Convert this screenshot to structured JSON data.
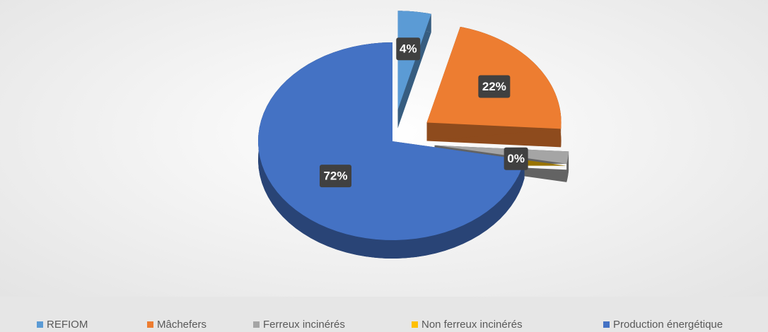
{
  "chart_data": {
    "type": "pie",
    "categories": [
      "REFIOM",
      "Mâchefers",
      "Ferreux incinérés",
      "Non ferreux incinérés",
      "Production énergétique"
    ],
    "values": [
      4,
      22,
      2,
      0,
      72
    ],
    "value_labels": [
      "4%",
      "22%",
      null,
      "0%",
      "72%"
    ],
    "colors": [
      "#5b9bd5",
      "#ed7d31",
      "#a5a5a5",
      "#ffc000",
      "#4472c4"
    ],
    "exploded": [
      true,
      true,
      true,
      true,
      false
    ],
    "legend": "bottom"
  }
}
